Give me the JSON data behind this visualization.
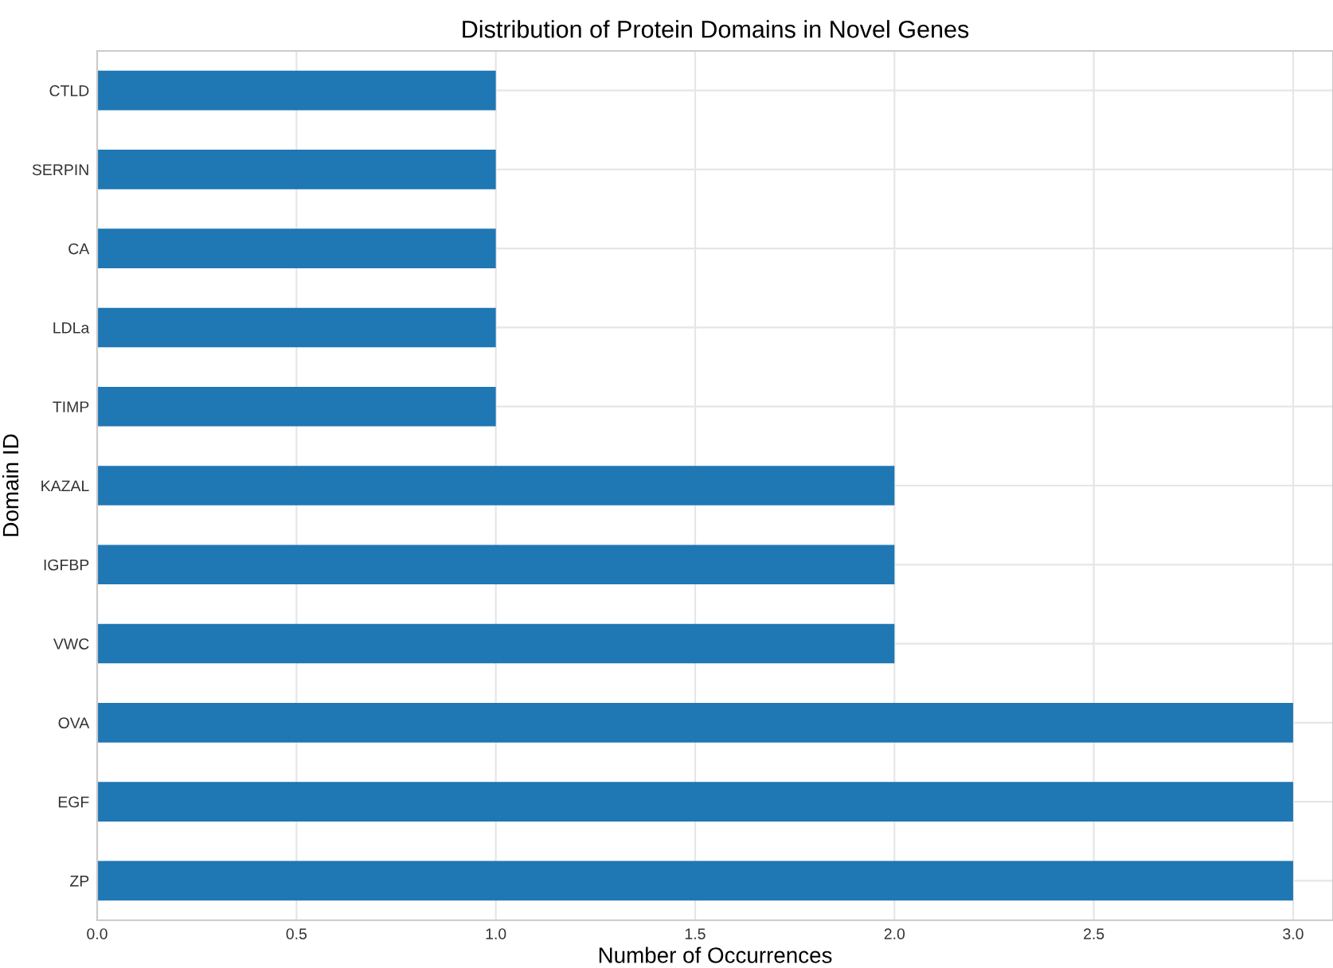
{
  "chart_data": {
    "type": "bar",
    "orientation": "horizontal",
    "title": "Distribution of Protein Domains in Novel Genes",
    "xlabel": "Number of Occurrences",
    "ylabel": "Domain ID",
    "categories": [
      "CTLD",
      "SERPIN",
      "CA",
      "LDLa",
      "TIMP",
      "KAZAL",
      "IGFBP",
      "VWC",
      "OVA",
      "EGF",
      "ZP"
    ],
    "values": [
      1,
      1,
      1,
      1,
      1,
      2,
      2,
      2,
      3,
      3,
      3
    ],
    "color": "#1f77b4",
    "xlim": [
      0,
      3.1
    ],
    "xticks": [
      {
        "value": 0,
        "label": "0.0"
      },
      0.5,
      {
        "value": 1,
        "label": "1.0"
      },
      1.5,
      {
        "value": 2,
        "label": "2.0"
      },
      2.5,
      {
        "value": 3,
        "label": "3.0"
      }
    ],
    "grid": true
  }
}
